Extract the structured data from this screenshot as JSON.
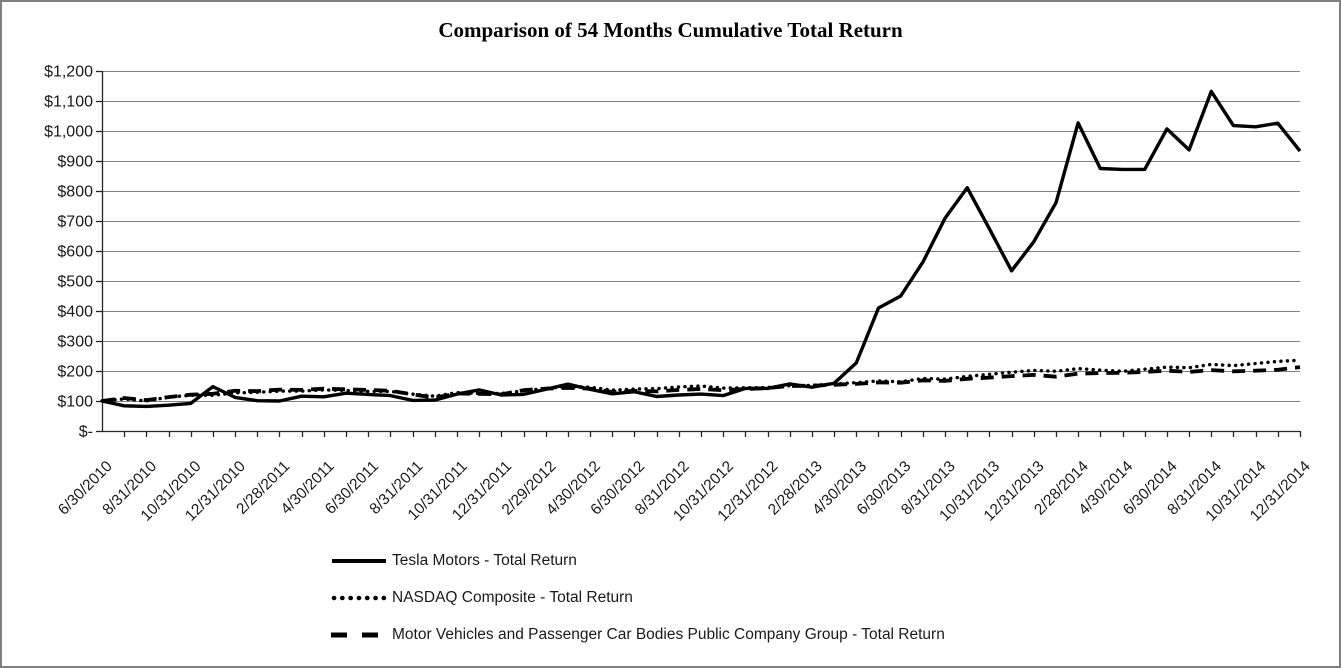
{
  "frame": {
    "border_color": "#7f7f7f",
    "background_color": "#ffffff"
  },
  "chart_data": {
    "type": "line",
    "title": "Comparison of 54 Months Cumulative Total Return",
    "xlabel": "",
    "ylabel": "",
    "ylim": [
      0,
      1200
    ],
    "y_tick_interval": 100,
    "grid": "horizontal",
    "gridline_color": "#808080",
    "axis_color": "#262626",
    "series_color": "#000000",
    "legend_position": "below-left",
    "y_tick_labels_top_to_bottom": [
      "$1,200",
      "$1,100",
      "$1,000",
      "$900",
      "$800",
      "$700",
      "$600",
      "$500",
      "$400",
      "$300",
      "$200",
      "$100",
      "$-"
    ],
    "x_axis_labels_shown": [
      "6/30/2010",
      "8/31/2010",
      "10/31/2010",
      "12/31/2010",
      "2/28/2011",
      "4/30/2011",
      "6/30/2011",
      "8/31/2011",
      "10/31/2011",
      "12/31/2011",
      "2/29/2012",
      "4/30/2012",
      "6/30/2012",
      "8/31/2012",
      "10/31/2012",
      "12/31/2012",
      "2/28/2013",
      "4/30/2013",
      "6/30/2013",
      "8/31/2013",
      "10/31/2013",
      "12/31/2013",
      "2/28/2014",
      "4/30/2014",
      "6/30/2014",
      "8/31/2014",
      "10/31/2014",
      "12/31/2014"
    ],
    "dates": [
      "6/30/2010",
      "7/31/2010",
      "8/31/2010",
      "9/30/2010",
      "10/31/2010",
      "11/30/2010",
      "12/31/2010",
      "1/31/2011",
      "2/28/2011",
      "3/31/2011",
      "4/30/2011",
      "5/31/2011",
      "6/30/2011",
      "7/31/2011",
      "8/31/2011",
      "9/30/2011",
      "10/31/2011",
      "11/30/2011",
      "12/31/2011",
      "1/31/2012",
      "2/29/2012",
      "3/31/2012",
      "4/30/2012",
      "5/31/2012",
      "6/30/2012",
      "7/31/2012",
      "8/31/2012",
      "9/30/2012",
      "10/31/2012",
      "11/30/2012",
      "12/31/2012",
      "1/31/2013",
      "2/28/2013",
      "3/31/2013",
      "4/30/2013",
      "5/31/2013",
      "6/30/2013",
      "7/31/2013",
      "8/31/2013",
      "9/30/2013",
      "10/31/2013",
      "11/30/2013",
      "12/31/2013",
      "1/31/2014",
      "2/28/2014",
      "3/31/2014",
      "4/30/2014",
      "5/31/2014",
      "6/30/2014",
      "7/31/2014",
      "8/31/2014",
      "9/30/2014",
      "10/31/2014",
      "11/30/2014",
      "12/31/2014"
    ],
    "series": [
      {
        "name": "Tesla Motors - Total Return",
        "line_style": "solid",
        "values": [
          100,
          84,
          82,
          86,
          92,
          148,
          112,
          101,
          100,
          116,
          114,
          126,
          122,
          118,
          102,
          103,
          123,
          137,
          120,
          122,
          139,
          156,
          139,
          124,
          131,
          115,
          120,
          123,
          118,
          142,
          142,
          157,
          146,
          159,
          227,
          410,
          450,
          563,
          709,
          811,
          674,
          534,
          631,
          761,
          1027,
          875,
          872,
          872,
          1007,
          937,
          1132,
          1018,
          1014,
          1026,
          933
        ]
      },
      {
        "name": "NASDAQ Composite - Total Return",
        "line_style": "dotted",
        "values": [
          100,
          107,
          100,
          113,
          119,
          119,
          127,
          129,
          133,
          133,
          137,
          135,
          132,
          132,
          123,
          116,
          128,
          125,
          125,
          134,
          142,
          148,
          146,
          136,
          140,
          141,
          147,
          150,
          143,
          144,
          145,
          151,
          152,
          157,
          161,
          167,
          164,
          175,
          173,
          182,
          189,
          196,
          202,
          199,
          208,
          203,
          199,
          206,
          213,
          211,
          222,
          218,
          225,
          232,
          236
        ]
      },
      {
        "name": "Motor Vehicles and Passenger Car Bodies Public Company Group - Total Return",
        "line_style": "dashed",
        "values": [
          100,
          110,
          103,
          113,
          121,
          124,
          134,
          133,
          138,
          137,
          141,
          139,
          137,
          134,
          122,
          111,
          125,
          124,
          122,
          136,
          141,
          144,
          141,
          130,
          134,
          132,
          137,
          140,
          136,
          140,
          143,
          150,
          151,
          154,
          157,
          162,
          161,
          169,
          167,
          174,
          178,
          183,
          187,
          181,
          191,
          193,
          194,
          197,
          201,
          197,
          203,
          199,
          201,
          204,
          213
        ]
      }
    ]
  }
}
